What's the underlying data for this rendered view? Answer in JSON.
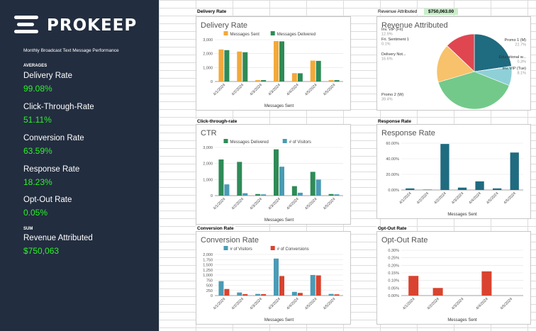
{
  "sidebar": {
    "logo_text": "PROKEEP",
    "subtitle": "Monthly Broadcast Text Message Performance",
    "averages_label": "AVERAGES",
    "sum_label": "SUM",
    "metrics": [
      {
        "label": "Delivery Rate",
        "value": "99.08%"
      },
      {
        "label": "Click-Through-Rate",
        "value": "51.11%"
      },
      {
        "label": "Conversion Rate",
        "value": "63.59%"
      },
      {
        "label": "Response Rate",
        "value": "18.23%"
      },
      {
        "label": "Opt-Out Rate",
        "value": "0.05%"
      }
    ],
    "revenue": {
      "label": "Revenue Attributed",
      "value": "$750,063"
    }
  },
  "sheet": {
    "labels": {
      "delivery": "Delivery Rate",
      "ctr": "Click-through-rate",
      "conversion": "Conversion Rate",
      "response": "Response Rate",
      "optout": "Opt-Out Rate",
      "revenue": "Revenue Attributed",
      "revenue_value": "$750,063.00"
    }
  },
  "colors": {
    "sidebar_bg": "#222d3f",
    "metric_value": "#2ef02e",
    "orange": "#f2a93b",
    "green": "#2e8b57",
    "teal": "#4a9bb5",
    "red": "#d9432f",
    "dark_teal": "#1f6b80"
  },
  "chart_data": [
    {
      "type": "bar",
      "title": "Delivery Rate",
      "xlabel": "Messages Sent",
      "categories": [
        "4/1/2024",
        "4/2/2024",
        "4/3/2024",
        "4/3/2024",
        "4/4/2024",
        "4/5/2024",
        "4/5/2024"
      ],
      "yticks": [
        "0",
        "1,000",
        "2,000",
        "3,000"
      ],
      "ylim": [
        0,
        3000
      ],
      "series": [
        {
          "name": "Messages Sent",
          "color": "#f2a93b",
          "values": [
            2300,
            2150,
            100,
            2900,
            600,
            1500,
            100
          ]
        },
        {
          "name": "Messages Delivered",
          "color": "#2e8b57",
          "values": [
            2250,
            2100,
            100,
            2880,
            590,
            1480,
            100
          ]
        }
      ],
      "legend": "top"
    },
    {
      "type": "bar",
      "title": "CTR",
      "xlabel": "Messages Sent",
      "categories": [
        "4/1/2024",
        "4/2/2024",
        "4/3/2024",
        "4/3/2024",
        "4/4/2024",
        "4/5/2024",
        "4/5/2024"
      ],
      "yticks": [
        "0",
        "1,000",
        "2,000",
        "3,000"
      ],
      "ylim": [
        0,
        3000
      ],
      "series": [
        {
          "name": "Messages Delivered",
          "color": "#2e8b57",
          "values": [
            2250,
            2100,
            100,
            2880,
            590,
            1480,
            100
          ]
        },
        {
          "name": "# of Visitors",
          "color": "#4a9bb5",
          "values": [
            700,
            150,
            80,
            1800,
            180,
            1000,
            80
          ]
        }
      ],
      "legend": "top"
    },
    {
      "type": "bar",
      "title": "Conversion Rate",
      "xlabel": "Messages Sent",
      "categories": [
        "4/1/2024",
        "4/2/2024",
        "4/3/2024",
        "4/3/2024",
        "4/4/2024",
        "4/5/2024",
        "4/5/2024"
      ],
      "yticks": [
        "0",
        "250",
        "500",
        "750",
        "1,000",
        "1,250",
        "1,500",
        "1,750",
        "2,000"
      ],
      "ylim": [
        0,
        2000
      ],
      "series": [
        {
          "name": "# of Visitors",
          "color": "#4a9bb5",
          "values": [
            700,
            150,
            80,
            1800,
            180,
            1000,
            80
          ]
        },
        {
          "name": "# of Conversions",
          "color": "#d9432f",
          "values": [
            320,
            70,
            70,
            950,
            130,
            980,
            60
          ]
        }
      ],
      "legend": "top"
    },
    {
      "type": "bar",
      "title": "Response Rate",
      "xlabel": "Messages Sent",
      "categories": [
        "4/1/2024",
        "4/2/2024",
        "4/2/2024",
        "4/3/2024",
        "4/4/2024",
        "4/5/2024",
        "4/5/2024"
      ],
      "yticks": [
        "0.00%",
        "20.00%",
        "40.00%",
        "60.00%"
      ],
      "ylim": [
        0,
        60
      ],
      "series": [
        {
          "name": "",
          "color": "#1f6b80",
          "values": [
            2,
            0.5,
            59,
            3,
            11,
            2,
            48
          ]
        }
      ]
    },
    {
      "type": "bar",
      "title": "Opt-Out Rate",
      "xlabel": "Messages Sent",
      "categories": [
        "4/1/2024",
        "4/2/2024",
        "4/3/2024",
        "4/4/2024",
        "4/5/2024"
      ],
      "yticks": [
        "0.00%",
        "0.05%",
        "0.10%",
        "0.15%",
        "0.20%",
        "0.25%",
        "0.30%"
      ],
      "ylim": [
        0,
        0.3
      ],
      "series": [
        {
          "name": "",
          "color": "#d9432f",
          "values": [
            0.13,
            0.05,
            0,
            0.16,
            0
          ]
        }
      ]
    },
    {
      "type": "pie",
      "title": "Revenue Attributed",
      "slices": [
        {
          "label": "Promo 1 (M)",
          "pct": "22.7%",
          "value": 22.7,
          "color": "#1f6b80"
        },
        {
          "label": "Educational w...",
          "pct": "0.3%",
          "value": 0.3,
          "color": "#7ec4cf"
        },
        {
          "label": "Inv. VIP (Tue)",
          "pct": "8.1%",
          "value": 8.1,
          "color": "#8fd0d8"
        },
        {
          "label": "Promo 2 (W)",
          "pct": "39.4%",
          "value": 39.4,
          "color": "#73c98a"
        },
        {
          "label": "Delivery Not...",
          "pct": "16.6%",
          "value": 16.6,
          "color": "#f7c26b"
        },
        {
          "label": "Fri. Sentiment 1",
          "pct": "0.1%",
          "value": 0.1,
          "color": "#e8883a"
        },
        {
          "label": "Inv. VIP (Fri)",
          "pct": "12.9%",
          "value": 12.9,
          "color": "#e04650"
        }
      ]
    }
  ]
}
